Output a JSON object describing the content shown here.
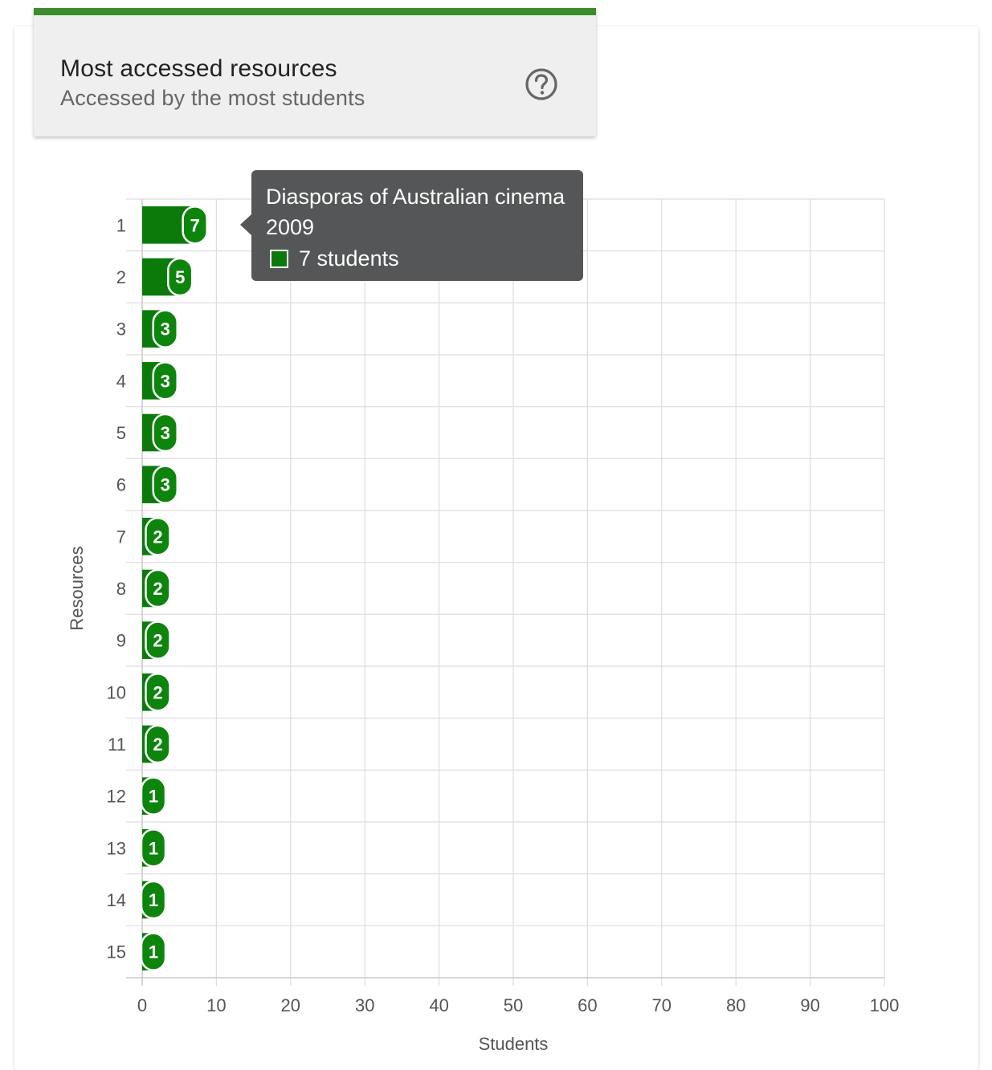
{
  "header": {
    "title": "Most accessed resources",
    "subtitle": "Accessed by the most students",
    "help_icon": "question-circle-icon"
  },
  "tooltip": {
    "title_line1": "Diasporas of Australian cinema",
    "title_line2": "2009",
    "value_text": "7 students",
    "swatch_color": "#0b7a0b"
  },
  "chart_data": {
    "type": "bar",
    "orientation": "horizontal",
    "categories": [
      "1",
      "2",
      "3",
      "4",
      "5",
      "6",
      "7",
      "8",
      "9",
      "10",
      "11",
      "12",
      "13",
      "14",
      "15"
    ],
    "values": [
      7,
      5,
      3,
      3,
      3,
      3,
      2,
      2,
      2,
      2,
      2,
      1,
      1,
      1,
      1
    ],
    "data_labels": [
      "7",
      "5",
      "3",
      "3",
      "3",
      "3",
      "2",
      "2",
      "2",
      "2",
      "2",
      "1",
      "1",
      "1",
      "1"
    ],
    "series": [
      {
        "values": [
          7,
          5,
          3,
          3,
          3,
          3,
          2,
          2,
          2,
          2,
          2,
          1,
          1,
          1,
          1
        ]
      }
    ],
    "xlabel": "Students",
    "ylabel": "Resources",
    "xlim": [
      0,
      100
    ],
    "x_ticks": [
      "0",
      "10",
      "20",
      "30",
      "40",
      "50",
      "60",
      "70",
      "80",
      "90",
      "100"
    ],
    "grid": true,
    "bar_color": "#0b7a0b",
    "label_color": "#0d850d"
  }
}
